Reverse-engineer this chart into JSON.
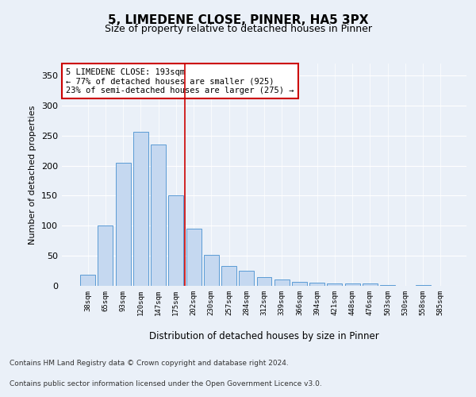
{
  "title1": "5, LIMEDENE CLOSE, PINNER, HA5 3PX",
  "title2": "Size of property relative to detached houses in Pinner",
  "xlabel": "Distribution of detached houses by size in Pinner",
  "ylabel": "Number of detached properties",
  "categories": [
    "38sqm",
    "65sqm",
    "93sqm",
    "120sqm",
    "147sqm",
    "175sqm",
    "202sqm",
    "230sqm",
    "257sqm",
    "284sqm",
    "312sqm",
    "339sqm",
    "366sqm",
    "394sqm",
    "421sqm",
    "448sqm",
    "476sqm",
    "503sqm",
    "530sqm",
    "558sqm",
    "585sqm"
  ],
  "values": [
    18,
    100,
    205,
    257,
    235,
    150,
    95,
    52,
    33,
    25,
    15,
    10,
    7,
    5,
    4,
    4,
    4,
    1,
    0,
    1,
    0
  ],
  "bar_color": "#c5d8f0",
  "bar_edge_color": "#5b9bd5",
  "vline_x": 5.5,
  "vline_color": "#cc0000",
  "annotation_text": "5 LIMEDENE CLOSE: 193sqm\n← 77% of detached houses are smaller (925)\n23% of semi-detached houses are larger (275) →",
  "annotation_box_color": "#ffffff",
  "annotation_box_edge_color": "#cc0000",
  "ylim": [
    0,
    370
  ],
  "yticks": [
    0,
    50,
    100,
    150,
    200,
    250,
    300,
    350
  ],
  "footer1": "Contains HM Land Registry data © Crown copyright and database right 2024.",
  "footer2": "Contains public sector information licensed under the Open Government Licence v3.0.",
  "bg_color": "#eaf0f8",
  "plot_bg_color": "#eaf0f8"
}
